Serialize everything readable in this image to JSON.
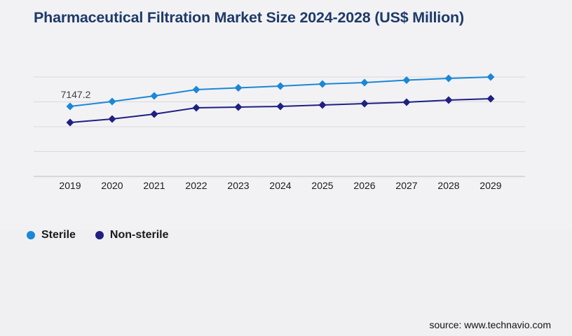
{
  "page": {
    "background_color": "#f2f2f5",
    "title": "Pharmaceutical Filtration Market Size 2024-2028 (US$ Million)",
    "title_color": "#1e3a68",
    "source_text": "source: www.technavio.com"
  },
  "chart_data": {
    "type": "line",
    "title": "Pharmaceutical Filtration Market Size 2024-2028 (US$ Million)",
    "categories": [
      "2019",
      "2020",
      "2021",
      "2022",
      "2023",
      "2024",
      "2025",
      "2026",
      "2027",
      "2028",
      "2029"
    ],
    "series": [
      {
        "name": "Sterile",
        "color": "#1c87d6",
        "marker": "diamond",
        "values": [
          7147.2,
          7536,
          7980,
          8480,
          8620,
          8758,
          8925,
          9036,
          9230,
          9370,
          9481
        ]
      },
      {
        "name": "Non-sterile",
        "color": "#201f82",
        "marker": "diamond",
        "values": [
          5870,
          6147,
          6536,
          7036,
          7092,
          7147,
          7258,
          7370,
          7480,
          7647,
          7758
        ]
      }
    ],
    "data_labels": [
      {
        "series": "Sterile",
        "category": "2019",
        "text": "7147.2"
      }
    ],
    "xlabel": "",
    "ylabel": "",
    "ylim": [
      1592,
      10870
    ],
    "gridline_values": [
      1592,
      3564,
      5536,
      7508,
      9481
    ],
    "grid": true,
    "legend_position": "bottom-left",
    "gridline_color": "#d9d9db",
    "axis_color": "#bcbcbf",
    "tick_label_color": "#1a1a1a",
    "data_label_color": "#404040"
  }
}
